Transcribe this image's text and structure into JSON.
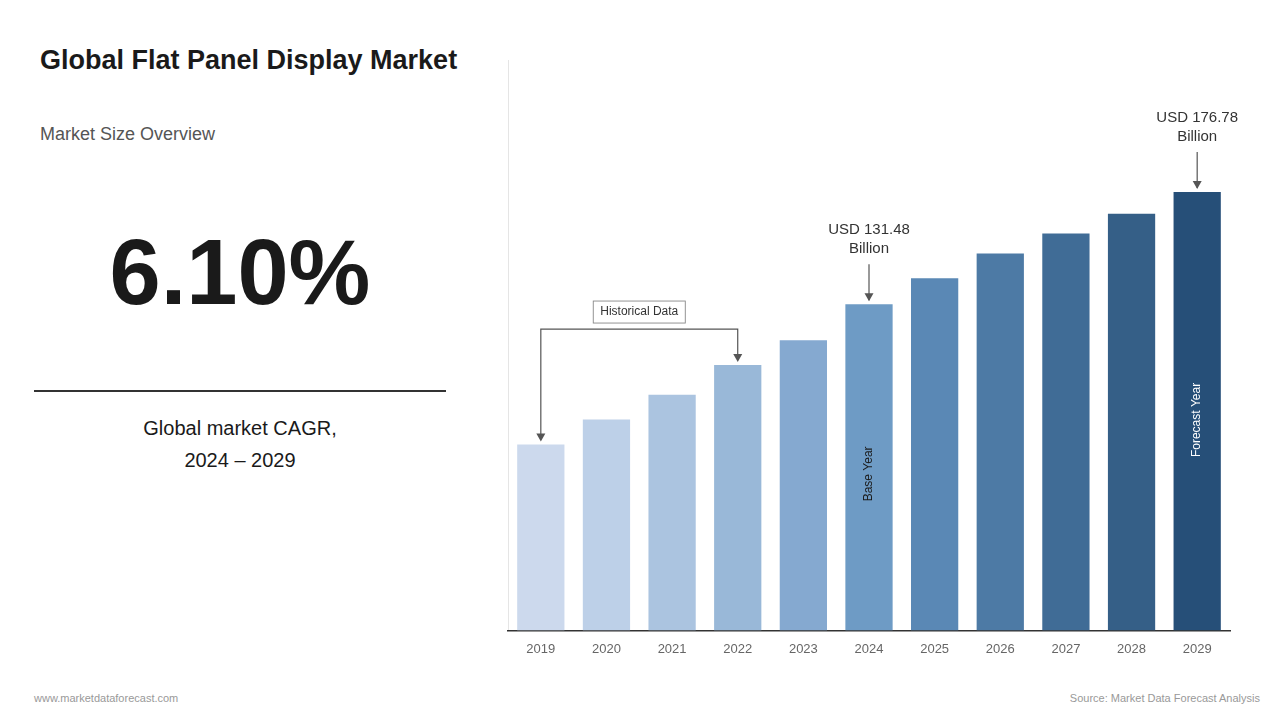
{
  "chart_data": {
    "type": "bar",
    "title": "Global Flat Panel Display Market",
    "subtitle": "Market Size Overview",
    "headline": "6.10%",
    "headline_label": "Global market CAGR,\n2024 – 2029",
    "categories": [
      2019,
      2020,
      2021,
      2022,
      2023,
      2024,
      2025,
      2026,
      2027,
      2028,
      2029
    ],
    "values": [
      75,
      85,
      95,
      107,
      117,
      131.48,
      142,
      152,
      160,
      168,
      176.78
    ],
    "colors": [
      "#ccd9ed",
      "#bdd0e8",
      "#abc4e0",
      "#99b8d8",
      "#85a9d0",
      "#6e9bc5",
      "#5a88b5",
      "#4d7aa5",
      "#406c96",
      "#355f87",
      "#264f78"
    ],
    "ylim": [
      0,
      230
    ],
    "grid": false,
    "tick_labels": "x",
    "bracket": {
      "text": "Historical Data",
      "categories": [
        2019,
        2022
      ]
    },
    "bar_notes": [
      {
        "category": 2024,
        "text": "Base Year"
      },
      {
        "category": 2029,
        "text": "Forecast Year"
      }
    ],
    "callouts": [
      {
        "category": 2024,
        "text": "USD 131.48\nBillion"
      },
      {
        "category": 2029,
        "text": "USD 176.78\nBillion"
      }
    ],
    "footers": [
      "www.marketdataforecast.com",
      "Source: Market Data Forecast Analysis"
    ]
  }
}
